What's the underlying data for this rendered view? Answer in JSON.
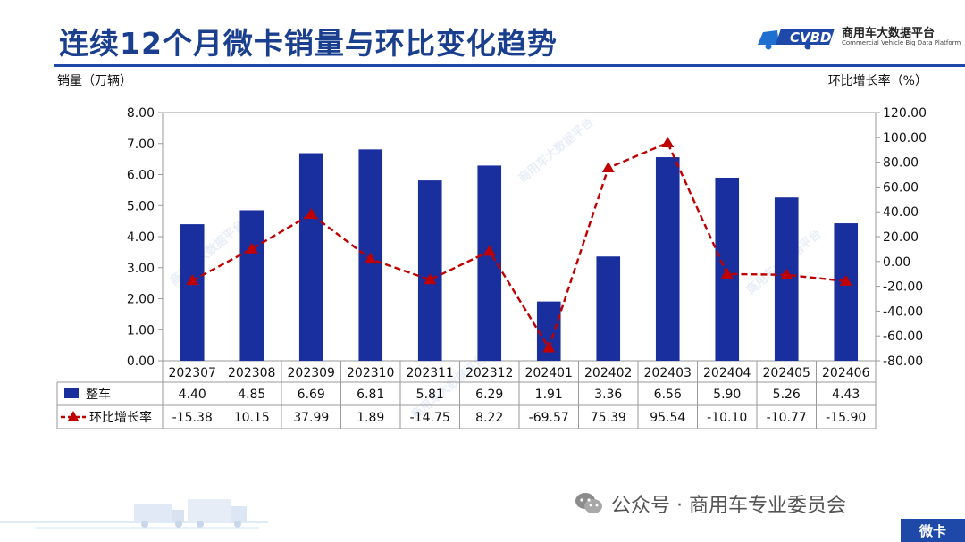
{
  "page": {
    "title": "连续12个月微卡销量与环比变化趋势",
    "brand_cn": "商用车大数据平台",
    "brand_en": "Commercial Vehicle Big Data Platform",
    "watermark_text": "商用车大数据平台",
    "footer_wechat": "公众号 · 商用车专业委员会",
    "footer_tag": "微卡"
  },
  "chart_data": {
    "type": "bar",
    "categories": [
      "202307",
      "202308",
      "202309",
      "202310",
      "202311",
      "202312",
      "202401",
      "202402",
      "202403",
      "202404",
      "202405",
      "202406"
    ],
    "series": [
      {
        "name": "整车",
        "type": "bar",
        "axis": "left",
        "color": "#1a2f9e",
        "values": [
          4.4,
          4.85,
          6.69,
          6.81,
          5.81,
          6.29,
          1.91,
          3.36,
          6.56,
          5.9,
          5.26,
          4.43
        ],
        "labels": [
          "4.40",
          "4.85",
          "6.69",
          "6.81",
          "5.81",
          "6.29",
          "1.91",
          "3.36",
          "6.56",
          "5.90",
          "5.26",
          "4.43"
        ]
      },
      {
        "name": "环比增长率",
        "type": "line",
        "axis": "right",
        "color": "#c00000",
        "values": [
          -15.38,
          10.15,
          37.99,
          1.89,
          -14.75,
          8.22,
          -69.57,
          75.39,
          95.54,
          -10.1,
          -10.77,
          -15.9
        ],
        "labels": [
          "-15.38",
          "10.15",
          "37.99",
          "1.89",
          "-14.75",
          "8.22",
          "-69.57",
          "75.39",
          "95.54",
          "-10.10",
          "-10.77",
          "-15.90"
        ]
      }
    ],
    "ylabel": "销量（万辆）",
    "y2label": "环比增长率（%）",
    "ylim": [
      0,
      8
    ],
    "y2lim": [
      -80,
      120
    ],
    "yticks": [
      "0.00",
      "1.00",
      "2.00",
      "3.00",
      "4.00",
      "5.00",
      "6.00",
      "7.00",
      "8.00"
    ],
    "y2ticks": [
      "-80.00",
      "-60.00",
      "-40.00",
      "-20.00",
      "0.00",
      "20.00",
      "40.00",
      "60.00",
      "80.00",
      "100.00",
      "120.00"
    ],
    "grid": false,
    "data_table": true
  }
}
